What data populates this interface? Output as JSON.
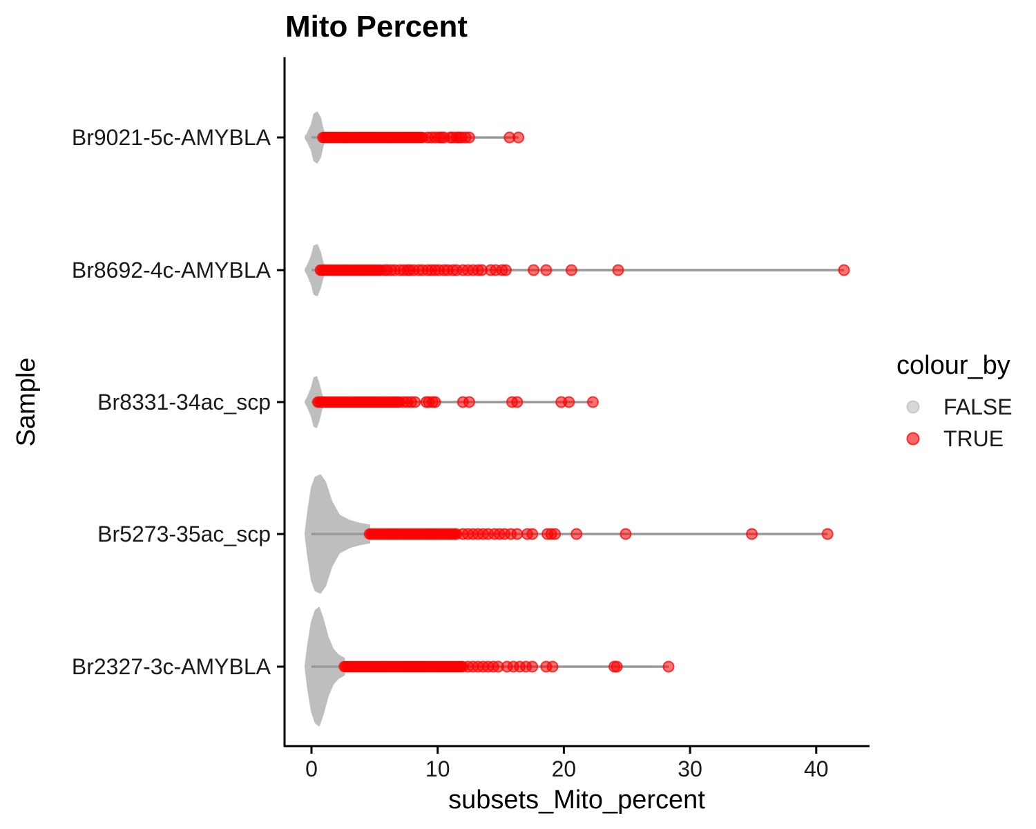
{
  "chart_data": {
    "type": "violin",
    "title": "Mito Percent",
    "xlabel": "subsets_Mito_percent",
    "ylabel": "Sample",
    "xlim": [
      -2.1,
      44.2
    ],
    "x_ticks": [
      "0",
      "10",
      "20",
      "30",
      "40"
    ],
    "x_tick_values": [
      0,
      10,
      20,
      30,
      40
    ],
    "categories": [
      "Br9021-5c-AMYBLA",
      "Br8692-4c-AMYBLA",
      "Br8331-34ac_scp",
      "Br5273-35ac_scp",
      "Br2327-3c-AMYBLA"
    ],
    "legend": {
      "title": "colour_by",
      "position": "right",
      "entries": [
        {
          "label": "FALSE",
          "color": "#bebebe"
        },
        {
          "label": "TRUE",
          "color": "#ff0000"
        }
      ]
    },
    "colors": {
      "false": "#bebebe",
      "true": "#ff0000",
      "range_line": "#999999"
    },
    "series": [
      {
        "category": "Br9021-5c-AMYBLA",
        "range": [
          0,
          16.4
        ],
        "false_max": 1.0,
        "violin_profile": [
          [
            -0.5,
            0.02
          ],
          [
            -0.3,
            0.18
          ],
          [
            0.0,
            0.5
          ],
          [
            0.2,
            0.92
          ],
          [
            0.45,
            1.0
          ],
          [
            0.7,
            0.78
          ],
          [
            0.9,
            0.35
          ],
          [
            1.1,
            0.08
          ],
          [
            1.3,
            0.0
          ]
        ],
        "violin_halfwidth_max": 0.6,
        "true_dense": [
          0.9,
          8.8
        ],
        "true_points": [
          9.2,
          9.5,
          9.8,
          10.1,
          10.3,
          10.5,
          11.0,
          11.2,
          11.5,
          11.7,
          11.9,
          12.2,
          12.5,
          15.7,
          16.4
        ]
      },
      {
        "category": "Br8692-4c-AMYBLA",
        "range": [
          0,
          42.2
        ],
        "false_max": 0.7,
        "violin_profile": [
          [
            -0.5,
            0.02
          ],
          [
            -0.3,
            0.2
          ],
          [
            0.0,
            0.55
          ],
          [
            0.2,
            0.95
          ],
          [
            0.45,
            1.0
          ],
          [
            0.7,
            0.7
          ],
          [
            0.9,
            0.3
          ],
          [
            1.1,
            0.06
          ],
          [
            1.3,
            0.0
          ]
        ],
        "violin_halfwidth_max": 0.6,
        "true_dense": [
          0.7,
          5.5
        ],
        "true_points": [
          5.8,
          6.0,
          6.3,
          6.6,
          7.0,
          7.3,
          7.6,
          7.8,
          8.1,
          8.5,
          8.8,
          9.2,
          9.5,
          9.8,
          10.1,
          10.5,
          10.8,
          11.2,
          11.5,
          12.0,
          12.4,
          12.8,
          13.2,
          13.5,
          14.2,
          14.6,
          15.1,
          15.4,
          17.6,
          18.6,
          20.6,
          24.3,
          42.2
        ]
      },
      {
        "category": "Br8331-34ac_scp",
        "range": [
          0,
          22.3
        ],
        "false_max": 0.5,
        "violin_profile": [
          [
            -0.5,
            0.02
          ],
          [
            -0.3,
            0.2
          ],
          [
            0.0,
            0.55
          ],
          [
            0.2,
            0.95
          ],
          [
            0.4,
            1.0
          ],
          [
            0.6,
            0.7
          ],
          [
            0.8,
            0.3
          ],
          [
            1.0,
            0.06
          ],
          [
            1.2,
            0.0
          ]
        ],
        "violin_halfwidth_max": 0.6,
        "true_dense": [
          0.5,
          7.0
        ],
        "true_points": [
          7.3,
          7.6,
          7.9,
          8.2,
          9.1,
          9.3,
          9.6,
          9.8,
          12.0,
          12.5,
          15.9,
          16.3,
          19.8,
          20.4,
          22.3
        ]
      },
      {
        "category": "Br5273-35ac_scp",
        "range": [
          0,
          40.9
        ],
        "false_max": 4.6,
        "violin_profile": [
          [
            -0.5,
            0.0
          ],
          [
            -0.3,
            0.35
          ],
          [
            0.0,
            0.78
          ],
          [
            0.3,
            0.96
          ],
          [
            0.7,
            1.0
          ],
          [
            1.1,
            0.88
          ],
          [
            1.6,
            0.55
          ],
          [
            2.2,
            0.32
          ],
          [
            3.0,
            0.23
          ],
          [
            3.8,
            0.18
          ],
          [
            4.6,
            0.15
          ]
        ],
        "violin_halfwidth_max": 1.4,
        "true_dense": [
          4.6,
          11.5
        ],
        "true_points": [
          12.0,
          12.4,
          12.8,
          13.2,
          13.6,
          14.0,
          14.5,
          14.9,
          15.3,
          15.8,
          16.3,
          17.1,
          17.5,
          18.7,
          19.0,
          19.3,
          21.0,
          24.9,
          34.9,
          40.9
        ]
      },
      {
        "category": "Br2327-3c-AMYBLA",
        "range": [
          0,
          28.3
        ],
        "false_max": 2.6,
        "violin_profile": [
          [
            -0.5,
            0.0
          ],
          [
            -0.3,
            0.35
          ],
          [
            0.0,
            0.75
          ],
          [
            0.3,
            0.95
          ],
          [
            0.6,
            1.0
          ],
          [
            0.9,
            0.82
          ],
          [
            1.3,
            0.5
          ],
          [
            1.7,
            0.3
          ],
          [
            2.1,
            0.2
          ],
          [
            2.6,
            0.14
          ]
        ],
        "violin_halfwidth_max": 1.4,
        "true_dense": [
          2.6,
          12.0
        ],
        "true_points": [
          12.4,
          12.8,
          13.2,
          13.6,
          14.0,
          14.4,
          14.8,
          15.5,
          16.0,
          16.5,
          17.0,
          17.5,
          18.6,
          19.1,
          24.0,
          24.2,
          28.3
        ]
      }
    ]
  }
}
